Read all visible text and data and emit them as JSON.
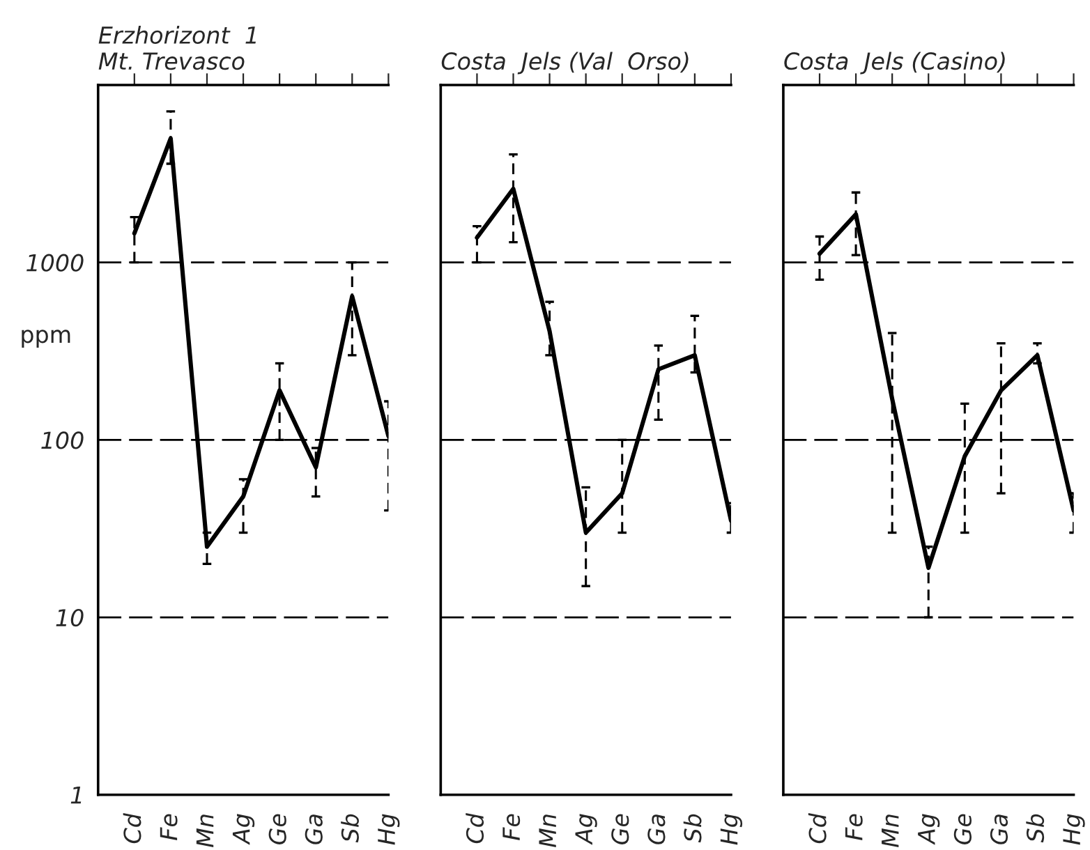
{
  "chart_data": [
    {
      "type": "line",
      "title": "Erzhorizont  1",
      "subtitle": "Mt. Trevasco",
      "ylabel": "ppm",
      "categories": [
        "Cd",
        "Fe",
        "Mn",
        "Ag",
        "Ge",
        "Ga",
        "Sb",
        "Hg"
      ],
      "log": true,
      "ylim": [
        1,
        10000
      ],
      "yticks": [
        1,
        10,
        100,
        1000
      ],
      "grid": "y",
      "marker": "none",
      "line_style": "solid",
      "series": [
        {
          "color": "#000000",
          "values": [
            1460,
            5000,
            25,
            48,
            190,
            70,
            645,
            105
          ],
          "errors": [
            [
              1000,
              1800
            ],
            [
              3600,
              7100
            ],
            [
              20,
              30
            ],
            [
              30,
              60
            ],
            [
              100,
              270
            ],
            [
              48,
              90
            ],
            [
              300,
              1000
            ],
            [
              40,
              165
            ]
          ]
        }
      ]
    },
    {
      "type": "line",
      "title": "Costa  Jels (Val  Orso)",
      "categories": [
        "Cd",
        "Fe",
        "Mn",
        "Ag",
        "Ge",
        "Ga",
        "Sb",
        "Hg"
      ],
      "log": true,
      "ylim": [
        1,
        10000
      ],
      "yticks": [
        1,
        10,
        100,
        1000
      ],
      "grid": "y",
      "marker": "none",
      "line_style": "solid",
      "tick_labels": "x",
      "series": [
        {
          "color": "#000000",
          "values": [
            1380,
            2600,
            410,
            30,
            50,
            250,
            300,
            35
          ],
          "errors": [
            [
              1000,
              1600
            ],
            [
              1300,
              4060
            ],
            [
              300,
              600
            ],
            [
              15,
              54
            ],
            [
              30,
              100
            ],
            [
              130,
              340
            ],
            [
              240,
              500
            ],
            [
              30,
              44
            ]
          ]
        }
      ]
    },
    {
      "type": "line",
      "title": "Costa  Jels (Casino)",
      "categories": [
        "Cd",
        "Fe",
        "Mn",
        "Ag",
        "Ge",
        "Ga",
        "Sb",
        "Hg"
      ],
      "log": true,
      "ylim": [
        1,
        10000
      ],
      "yticks": [
        1,
        10,
        100,
        1000
      ],
      "grid": "y",
      "marker": "none",
      "line_style": "solid",
      "tick_labels": "x",
      "series": [
        {
          "color": "#000000",
          "values": [
            1120,
            1870,
            170,
            19,
            81,
            190,
            300,
            40
          ],
          "errors": [
            [
              800,
              1400
            ],
            [
              1100,
              2480
            ],
            [
              30,
              400
            ],
            [
              10,
              25
            ],
            [
              30,
              160
            ],
            [
              50,
              350
            ],
            [
              270,
              350
            ],
            [
              30,
              50
            ]
          ]
        }
      ]
    }
  ]
}
